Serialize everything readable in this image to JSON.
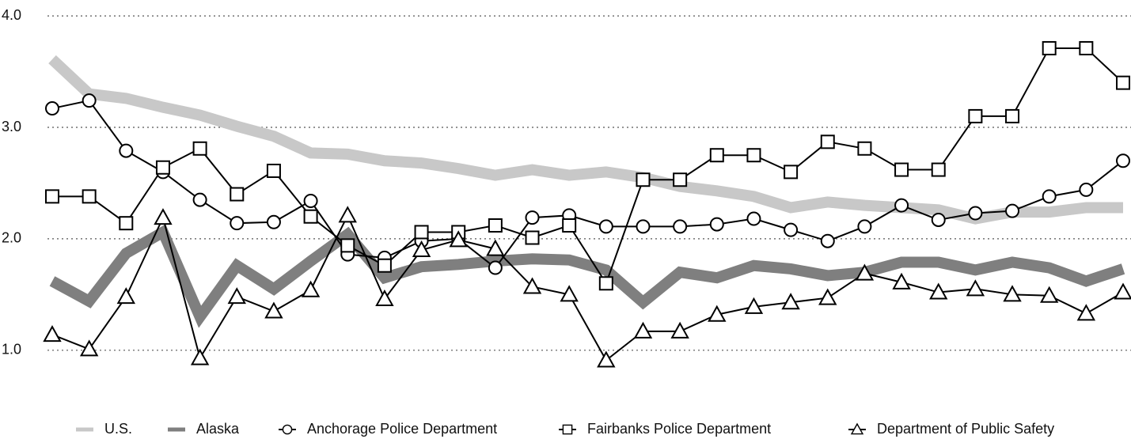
{
  "chart_data": {
    "type": "line",
    "categories": [
      null,
      null,
      null,
      null,
      null,
      null,
      null,
      null,
      null,
      null,
      null,
      null,
      null,
      null,
      null,
      null,
      null,
      null,
      null,
      null,
      null,
      null,
      null,
      null,
      null,
      null,
      null,
      null,
      null,
      null
    ],
    "ylim": [
      0.8,
      4.1
    ],
    "yticks": [
      {
        "value": 1,
        "label": "1.0"
      },
      {
        "value": 2,
        "label": "2.0"
      },
      {
        "value": 3,
        "label": "3.0"
      },
      {
        "value": 4,
        "label": "4.0"
      }
    ],
    "grid": true,
    "legend": "bottom",
    "series": [
      {
        "name": "U.S.",
        "color": "#c8c8c8",
        "line_width": 14,
        "marker": "none",
        "values": [
          3.61,
          3.3,
          3.26,
          3.18,
          3.11,
          3.01,
          2.92,
          2.77,
          2.76,
          2.7,
          2.68,
          2.63,
          2.57,
          2.62,
          2.57,
          2.6,
          2.55,
          2.47,
          2.43,
          2.38,
          2.28,
          2.33,
          2.3,
          2.28,
          2.26,
          2.18,
          2.24,
          2.24,
          2.28,
          2.28
        ]
      },
      {
        "name": "Alaska",
        "color": "#7f7f7f",
        "line_width": 14,
        "marker": "none",
        "values": [
          1.62,
          1.44,
          1.87,
          2.06,
          1.3,
          1.76,
          1.55,
          1.8,
          2.04,
          1.65,
          1.75,
          1.77,
          1.8,
          1.82,
          1.81,
          1.72,
          1.43,
          1.7,
          1.65,
          1.76,
          1.73,
          1.67,
          1.7,
          1.79,
          1.79,
          1.72,
          1.79,
          1.74,
          1.62,
          1.73
        ]
      },
      {
        "name": "Anchorage Police Department",
        "color": "#000000",
        "line_width": 2,
        "marker": "circle",
        "values": [
          3.17,
          3.24,
          2.79,
          2.6,
          2.35,
          2.14,
          2.15,
          2.34,
          1.86,
          1.83,
          1.98,
          2.0,
          1.74,
          2.19,
          2.21,
          2.11,
          2.11,
          2.11,
          2.13,
          2.18,
          2.08,
          1.98,
          2.11,
          2.3,
          2.17,
          2.23,
          2.25,
          2.38,
          2.44,
          2.7
        ]
      },
      {
        "name": "Fairbanks Police Department",
        "color": "#000000",
        "line_width": 2,
        "marker": "square",
        "values": [
          2.38,
          2.38,
          2.14,
          2.64,
          2.81,
          2.4,
          2.61,
          2.2,
          1.94,
          1.76,
          2.06,
          2.06,
          2.12,
          2.01,
          2.12,
          1.6,
          2.53,
          2.53,
          2.75,
          2.75,
          2.6,
          2.87,
          2.81,
          2.62,
          2.62,
          3.1,
          3.1,
          3.71,
          3.71,
          3.4
        ]
      },
      {
        "name": "Department of Public Safety",
        "color": "#000000",
        "line_width": 2,
        "marker": "triangle",
        "values": [
          1.14,
          1.01,
          1.48,
          2.19,
          0.93,
          1.48,
          1.35,
          1.54,
          2.21,
          1.46,
          1.9,
          1.99,
          1.91,
          1.57,
          1.5,
          0.91,
          1.17,
          1.17,
          1.32,
          1.39,
          1.43,
          1.47,
          1.69,
          1.61,
          1.52,
          1.55,
          1.5,
          1.49,
          1.33,
          1.52
        ]
      }
    ]
  }
}
